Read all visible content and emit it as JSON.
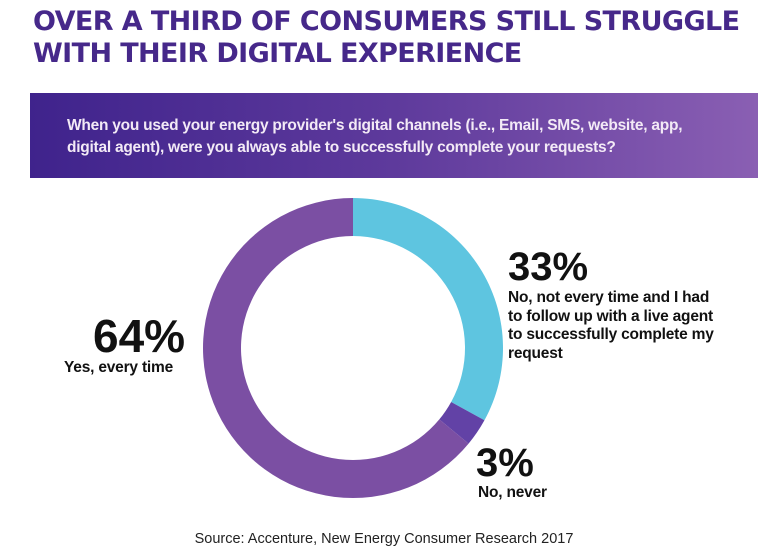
{
  "header": {
    "title_line1": "OVER A THIRD OF CONSUMERS STILL STRUGGLE",
    "title_line2": "WITH THEIR DIGITAL EXPERIENCE"
  },
  "question": {
    "line1": "When you used your energy provider's digital channels (i.e., Email, SMS, website, app,",
    "line2": "digital agent), were you always able to successfully complete your requests?"
  },
  "chart_data": {
    "type": "pie",
    "variant": "donut",
    "title": "When you used your energy provider's digital channels (i.e., Email, SMS, website, app, digital agent), were you always able to successfully complete your requests?",
    "slices": [
      {
        "value": 33,
        "pct_label": "33%",
        "label_lines": [
          "No, not every time and I had",
          "to follow up with a live agent",
          "to successfully complete my",
          "request"
        ],
        "color": "#5ec5e0"
      },
      {
        "value": 3,
        "pct_label": "3%",
        "label_lines": [
          "No, never"
        ],
        "color": "#6242a6"
      },
      {
        "value": 64,
        "pct_label": "64%",
        "label_lines": [
          "Yes, every time"
        ],
        "color": "#7b4fa3"
      }
    ],
    "start": "top",
    "direction": "clockwise"
  },
  "source": "Source: Accenture, New Energy Consumer Research 2017"
}
